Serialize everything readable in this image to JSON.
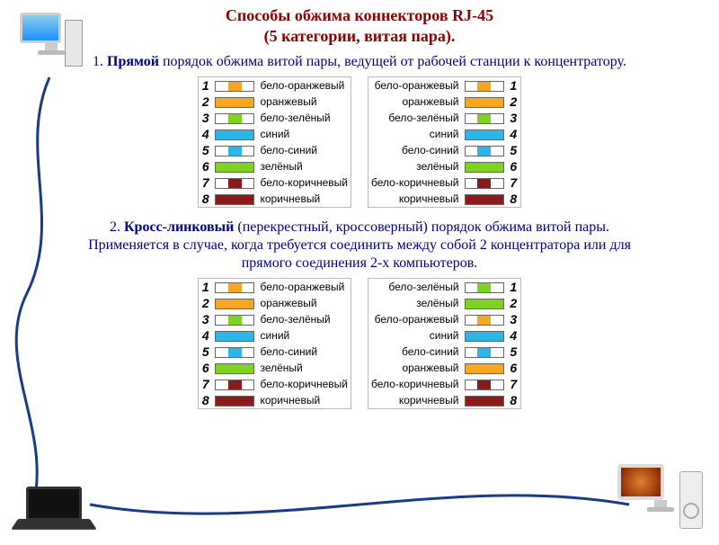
{
  "title_l1": "Способы обжима коннекторов RJ-45",
  "title_l2": "(5 категории, витая пара).",
  "section1": {
    "num": "1. ",
    "bold": "Прямой",
    "rest": " порядок обжима витой пары, ведущей от рабочей станции к концентратору."
  },
  "section2": {
    "num": "2. ",
    "bold": "Кросс-линковый",
    "rest1": " (перекрестный, кроссоверный) порядок обжима витой пары.",
    "rest2": "Применяется в случае, когда требуется соединить между собой 2 концентратора или для прямого соединения 2-х компьютеров."
  },
  "colors": {
    "orange": "#f5a623",
    "green": "#7ed321",
    "blue": "#2db5e8",
    "brown": "#8b1a1a",
    "white": "#ffffff",
    "border": "#666666",
    "cable": "#1a3a8a"
  },
  "wires": {
    "wo": {
      "label": "бело-оранжевый",
      "striped": true,
      "c": "orange"
    },
    "o": {
      "label": "оранжевый",
      "striped": false,
      "c": "orange"
    },
    "wg": {
      "label": "бело-зелёный",
      "striped": true,
      "c": "green"
    },
    "g": {
      "label": "зелёный",
      "striped": false,
      "c": "green"
    },
    "wb": {
      "label": "бело-синий",
      "striped": true,
      "c": "blue"
    },
    "b": {
      "label": "синий",
      "striped": false,
      "c": "blue"
    },
    "wbr": {
      "label": "бело-коричневый",
      "striped": true,
      "c": "brown"
    },
    "br": {
      "label": "коричневый",
      "striped": false,
      "c": "brown"
    }
  },
  "table1": {
    "left": [
      "wo",
      "o",
      "wg",
      "b",
      "wb",
      "g",
      "wbr",
      "br"
    ],
    "right": [
      "wo",
      "o",
      "wg",
      "b",
      "wb",
      "g",
      "wbr",
      "br"
    ]
  },
  "table2": {
    "left": [
      "wo",
      "o",
      "wg",
      "b",
      "wb",
      "g",
      "wbr",
      "br"
    ],
    "right": [
      "wg",
      "g",
      "wo",
      "b",
      "wb",
      "o",
      "wbr",
      "br"
    ]
  }
}
